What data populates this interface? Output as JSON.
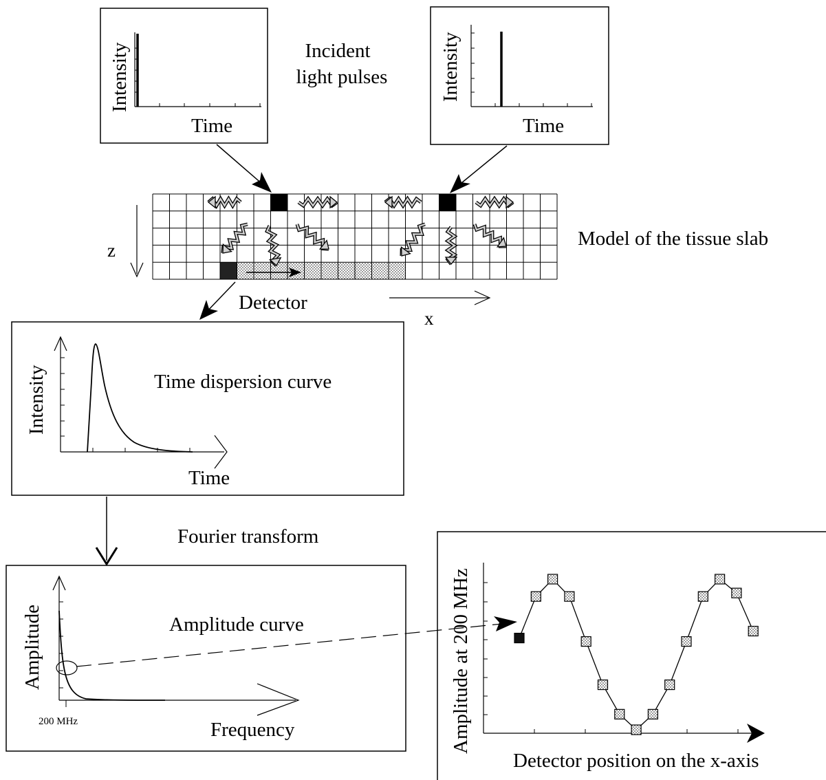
{
  "pulse_left": {
    "x_label": "Time",
    "y_label": "Intensity"
  },
  "pulse_right": {
    "x_label": "Time",
    "y_label": "Intensity"
  },
  "incident": {
    "line1": "Incident",
    "line2": "light pulses"
  },
  "slab": {
    "label": "Model of the tissue slab",
    "z_label": "z",
    "x_label": "x",
    "detector_label": "Detector"
  },
  "dispersion": {
    "title": "Time dispersion curve",
    "x_label": "Time",
    "y_label": "Intensity"
  },
  "fourier": {
    "label": "Fourier transform"
  },
  "amplitude": {
    "title": "Amplitude curve",
    "x_label": "Frequency",
    "y_label": "Amplitude",
    "tick_label": "200 MHz"
  },
  "position_plot": {
    "x_label": "Detector position on the x-axis",
    "y_label": "Amplitude at 200 MHz"
  },
  "chart_data": {
    "type": "line",
    "title": "",
    "xlabel": "Detector position on the x-axis",
    "ylabel": "Amplitude at 200 MHz",
    "grid": false,
    "x": [
      1,
      2,
      3,
      4,
      5,
      6,
      7,
      8,
      9,
      10,
      11,
      12,
      13,
      14,
      15
    ],
    "series": [
      {
        "values": [
          0.53,
          0.77,
          0.87,
          0.77,
          0.51,
          0.26,
          0.09,
          0.0,
          0.09,
          0.26,
          0.51,
          0.77,
          0.87,
          0.79,
          0.57
        ]
      }
    ],
    "highlight_first_point": true,
    "colors": {
      "ink": "#000000",
      "marker_fill": "#d6d6d6",
      "highlight": "#111111"
    }
  }
}
